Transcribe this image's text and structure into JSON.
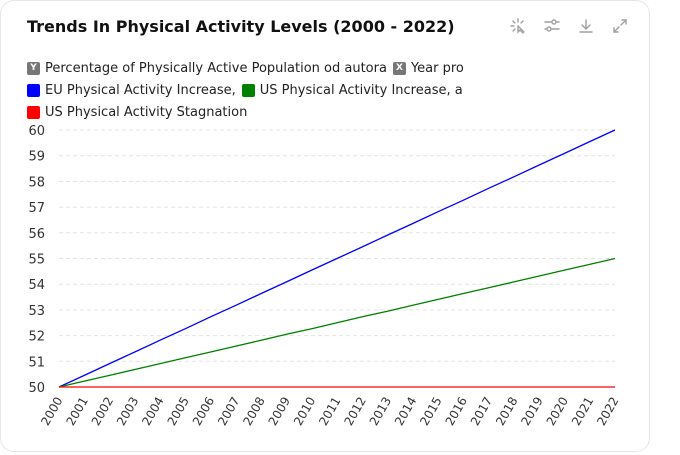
{
  "chart_data": {
    "type": "line",
    "title": "Trends In Physical Activity Levels (2000 - 2022)",
    "ylabel": "Percentage of Physically Active Population od autora",
    "xlabel": "Year pro",
    "ylim": [
      50,
      60
    ],
    "yticks": [
      "50",
      "51",
      "52",
      "53",
      "54",
      "55",
      "56",
      "57",
      "58",
      "59",
      "60"
    ],
    "grid": true,
    "legend_position": "top-left",
    "x": [
      "2000",
      "2001",
      "2002",
      "2003",
      "2004",
      "2005",
      "2006",
      "2007",
      "2008",
      "2009",
      "2010",
      "2011",
      "2012",
      "2013",
      "2014",
      "2015",
      "2016",
      "2017",
      "2018",
      "2019",
      "2020",
      "2021",
      "2022"
    ],
    "series": [
      {
        "name": "EU Physical Activity Increase,",
        "color": "#0000ff",
        "values": [
          50,
          50.45,
          50.91,
          51.36,
          51.82,
          52.27,
          52.73,
          53.18,
          53.64,
          54.09,
          54.55,
          55,
          55.45,
          55.91,
          56.36,
          56.82,
          57.27,
          57.73,
          58.18,
          58.64,
          59.09,
          59.55,
          60
        ]
      },
      {
        "name": "US Physical Activity Increase, a",
        "color": "#008000",
        "values": [
          50,
          50.23,
          50.45,
          50.68,
          50.91,
          51.14,
          51.36,
          51.59,
          51.82,
          52.05,
          52.27,
          52.5,
          52.73,
          52.95,
          53.18,
          53.41,
          53.64,
          53.86,
          54.09,
          54.32,
          54.55,
          54.77,
          55
        ]
      },
      {
        "name": "US Physical Activity Stagnation",
        "color": "#ff0000",
        "values": [
          50,
          50,
          50,
          50,
          50,
          50,
          50,
          50,
          50,
          50,
          50,
          50,
          50,
          50,
          50,
          50,
          50,
          50,
          50,
          50,
          50,
          50,
          50
        ]
      }
    ]
  },
  "legend": {
    "axis_y_badge": "Y",
    "axis_x_badge": "X",
    "badge_color": "#777777"
  },
  "toolbar": {
    "icons": [
      "cursor-click-icon",
      "sliders-icon",
      "download-icon",
      "expand-icon"
    ],
    "icon_color": "#a0a0a0"
  },
  "colors": {
    "grid": "#e3e3e3",
    "axis_text": "#333333"
  }
}
